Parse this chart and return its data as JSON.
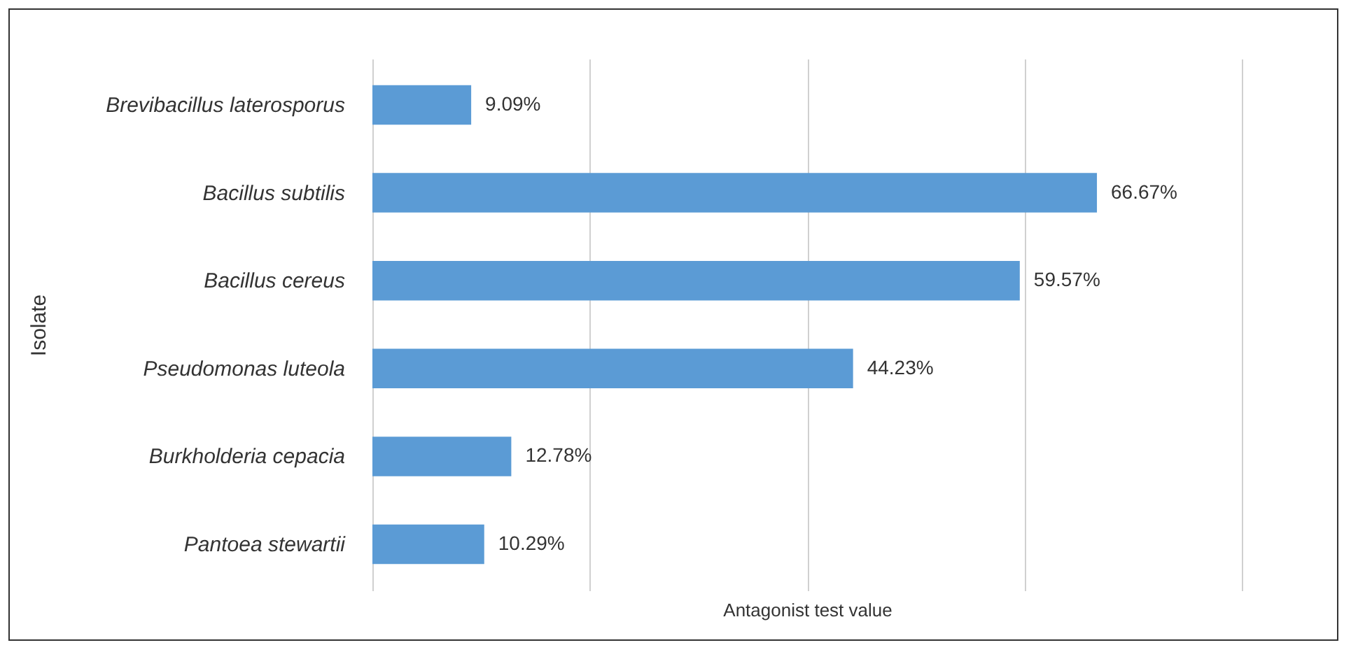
{
  "chart_data": {
    "type": "bar",
    "orientation": "horizontal",
    "xlabel": "Antagonist test value",
    "ylabel": "Isolate",
    "categories": [
      "Brevibacillus laterosporus",
      "Bacillus subtilis",
      "Bacillus cereus",
      "Pseudomonas luteola",
      "Burkholderia cepacia",
      "Pantoea stewartii"
    ],
    "values": [
      9.09,
      66.67,
      59.57,
      44.23,
      12.78,
      10.29
    ],
    "value_labels": [
      "9.09%",
      "66.67%",
      "59.57%",
      "44.23%",
      "12.78%",
      "10.29%"
    ],
    "color": "#5b9bd5",
    "xlim": [
      0,
      80
    ],
    "xticks": [
      {
        "value": 0,
        "label": null
      },
      {
        "value": 20,
        "label": null
      },
      {
        "value": 40,
        "label": null
      },
      {
        "value": 60,
        "label": null
      },
      {
        "value": 80,
        "label": null
      }
    ],
    "grid": "x",
    "tick_labels": "y"
  }
}
